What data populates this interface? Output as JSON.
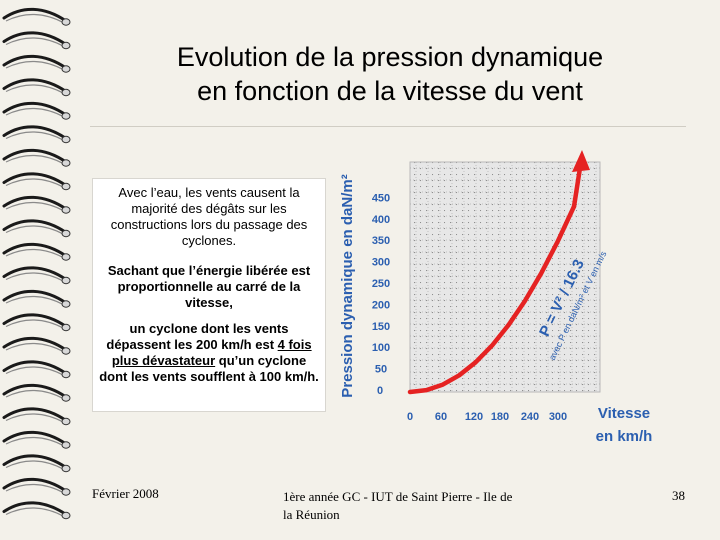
{
  "slide": {
    "title_line1": "Evolution de la pression dynamique",
    "title_line2": "en fonction de la vitesse du vent",
    "para1": "Avec l’eau, les vents causent la majorité des dégâts sur les constructions lors du passage des cyclones.",
    "para2": "Sachant que l’énergie libérée est proportionnelle au carré de la vitesse,",
    "para3_a": "un cyclone dont les vents dépassent les 200 km/h est ",
    "para3_b": "4 fois plus dévastateur",
    "para3_c": " qu’un cyclone dont les vents soufflent à 100 km/h.",
    "footer_date": "Février 2008",
    "footer_institution": "1ère année GC - IUT de Saint Pierre - Ile de la Réunion",
    "page_number": "38"
  },
  "chart_data": {
    "type": "line",
    "ylabel": "Pression dynamique en daN/m²",
    "xlabel_line1": "Vitesse",
    "xlabel_line2": "en km/h",
    "x_ticks": [
      "0",
      "60",
      "120",
      "180",
      "240",
      "300"
    ],
    "y_ticks": [
      "0",
      "50",
      "100",
      "150",
      "200",
      "250",
      "300",
      "350",
      "400",
      "450"
    ],
    "xlim": [
      0,
      300
    ],
    "ylim": [
      0,
      450
    ],
    "grid": true,
    "formula_main": "P = V² / 16.3",
    "formula_note": "avec P en daN/m² et V en m/s",
    "series": [
      {
        "x": [
          0,
          30,
          60,
          90,
          120,
          150,
          180,
          210,
          240,
          270,
          300
        ],
        "values": [
          0,
          4.3,
          17.0,
          38.3,
          68.2,
          106.5,
          153.4,
          208.8,
          272.6,
          345.0,
          425.9
        ]
      }
    ],
    "colors": {
      "curve": "#e52222",
      "arrow": "#e52222",
      "axis_text": "#000000",
      "grid": "#9a9a9a",
      "plot_bg": "#e4e4e4"
    }
  }
}
